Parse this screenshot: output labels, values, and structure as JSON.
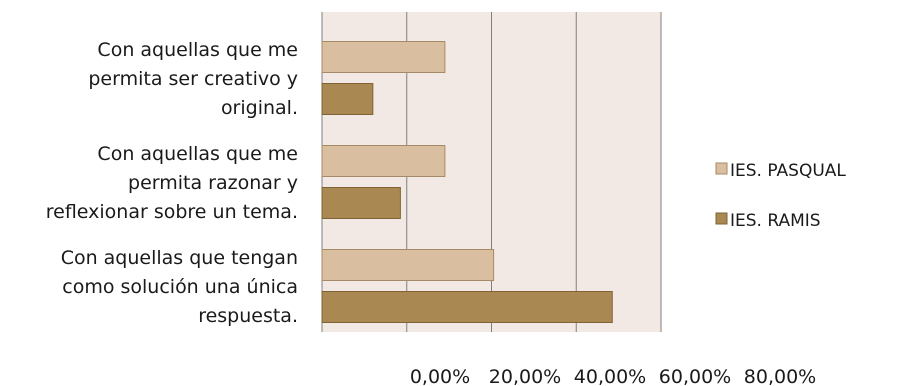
{
  "chart_data": {
    "type": "bar",
    "orientation": "horizontal",
    "categories": [
      [
        "Con aquellas que me",
        "permita ser creativo y",
        "original."
      ],
      [
        "Con aquellas que me",
        "permita razonar y",
        "reflexionar sobre un tema."
      ],
      [
        "Con aquellas que tengan",
        "como solución una única",
        "respuesta."
      ]
    ],
    "series": [
      {
        "name": "IES. PASQUAL",
        "values": [
          29,
          29,
          40.5
        ]
      },
      {
        "name": "IES. RAMIS",
        "values": [
          12,
          18.5,
          68.5
        ]
      }
    ],
    "x_ticks": [
      "0,00%",
      "20,00%",
      "40,00%",
      "60,00%",
      "80,00%"
    ],
    "xlim": [
      0,
      80
    ],
    "grid": true,
    "legend_position": "right",
    "colors": {
      "plot_background": "#f3e9e4",
      "gridline": "#7f7f7f",
      "series": [
        "#d9bea0",
        "#a98852"
      ],
      "series_stroke": [
        "#a68a68",
        "#7f6337"
      ]
    }
  }
}
